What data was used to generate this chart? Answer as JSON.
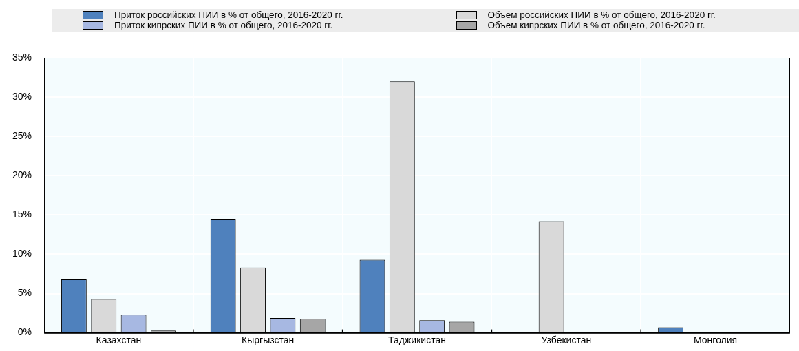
{
  "chart_data": {
    "type": "bar",
    "categories": [
      "Казахстан",
      "Кыргызстан",
      "Таджикистан",
      "Узбекистан",
      "Монголия"
    ],
    "series": [
      {
        "name": "Приток российских ПИИ в % от общего, 2016-2020 гг.",
        "color": "#4f81bd",
        "values": [
          6.8,
          14.5,
          9.3,
          0,
          0.7
        ]
      },
      {
        "name": "Объем российских ПИИ в % от общего, 2016-2020 гг.",
        "color": "#d9d9d9",
        "values": [
          4.3,
          8.3,
          32,
          14.2,
          0.1
        ]
      },
      {
        "name": "Приток кипрских ПИИ в % от общего, 2016-2020 гг.",
        "color": "#a7b8e2",
        "values": [
          2.3,
          1.9,
          1.6,
          0,
          0
        ]
      },
      {
        "name": "Объем кипрских ПИИ в % от общего, 2016-2020 гг.",
        "color": "#a6a6a6",
        "values": [
          0.3,
          1.8,
          1.4,
          0,
          0.1
        ]
      }
    ],
    "ylim": [
      0,
      35
    ],
    "yticks": [
      {
        "value": 0,
        "label": "0%"
      },
      {
        "value": 5,
        "label": "5%"
      },
      {
        "value": 10,
        "label": "10%"
      },
      {
        "value": 15,
        "label": "15%"
      },
      {
        "value": 20,
        "label": "20%"
      },
      {
        "value": 25,
        "label": "25%"
      },
      {
        "value": 30,
        "label": "30%"
      },
      {
        "value": 35,
        "label": "35%"
      }
    ],
    "grid": true,
    "legend": "top"
  }
}
